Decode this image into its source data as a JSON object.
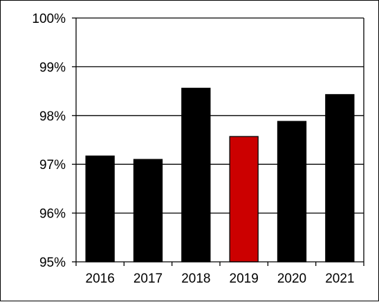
{
  "chart_data": {
    "type": "bar",
    "categories": [
      "2016",
      "2017",
      "2018",
      "2019",
      "2020",
      "2021"
    ],
    "values": [
      97.17,
      97.1,
      98.56,
      97.57,
      97.88,
      98.43
    ],
    "highlight_category": "2019",
    "colors": {
      "default": "#000000",
      "highlight": "#cc0000",
      "gridline": "#000000"
    },
    "y_tick_labels": [
      "95%",
      "96%",
      "97%",
      "98%",
      "99%",
      "100%"
    ],
    "ylim": [
      95,
      100
    ],
    "grid": true,
    "legend": "none"
  }
}
